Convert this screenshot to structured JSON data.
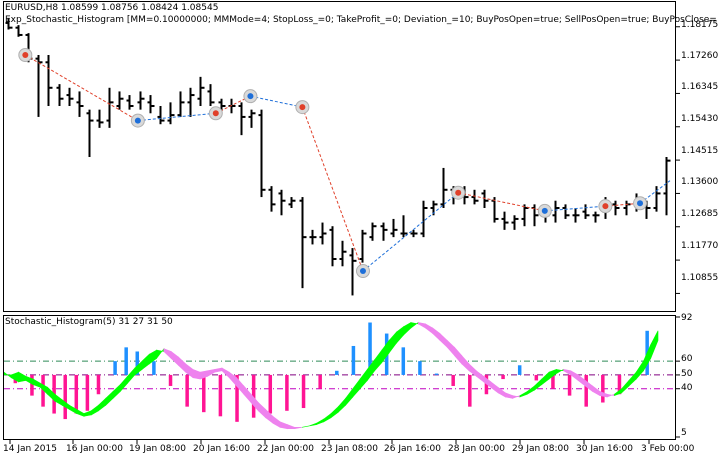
{
  "main_panel": {
    "symbol_header": "EURUSD,H8  1.08599 1.08756 1.08424 1.08545",
    "indicator_header": "Exp_Stochastic_Histogram [MM=0.10000000; MMMode=4; StopLoss_=0; TakeProfit_=0; Deviation_=10; BuyPosOpen=true; SellPosOpen=true; BuyPosClose=",
    "price_labels": [
      "1.18175",
      "1.17260",
      "1.16345",
      "1.15430",
      "1.14515",
      "1.13600",
      "1.12685",
      "1.11770",
      "1.10855"
    ]
  },
  "sub_panel": {
    "title": "Stochastic_Histogram(5) 31 27 31 50",
    "scale_labels": [
      "92",
      "60",
      "50",
      "40",
      "5"
    ]
  },
  "time_axis": {
    "labels": [
      "14 Jan 2015",
      "16 Jan 00:00",
      "19 Jan 08:00",
      "20 Jan 16:00",
      "22 Jan 00:00",
      "23 Jan 08:00",
      "26 Jan 16:00",
      "28 Jan 00:00",
      "29 Jan 08:00",
      "30 Jan 16:00",
      "3 Feb 00:00"
    ]
  },
  "chart_data": [
    {
      "type": "ohlc",
      "symbol": "EURUSD",
      "timeframe": "H8",
      "ylim": [
        1.104,
        1.188
      ],
      "bars": [
        [
          1.1828,
          1.184,
          1.181,
          1.1815
        ],
        [
          1.1815,
          1.1822,
          1.179,
          1.1795
        ],
        [
          1.1795,
          1.18,
          1.172,
          1.173
        ],
        [
          1.173,
          1.174,
          1.157,
          1.172
        ],
        [
          1.172,
          1.174,
          1.16,
          1.165
        ],
        [
          1.165,
          1.166,
          1.16,
          1.162
        ],
        [
          1.163,
          1.165,
          1.16,
          1.162
        ],
        [
          1.161,
          1.164,
          1.157,
          1.16
        ],
        [
          1.158,
          1.159,
          1.146,
          1.156
        ],
        [
          1.156,
          1.159,
          1.154,
          1.1555
        ],
        [
          1.156,
          1.165,
          1.154,
          1.161
        ],
        [
          1.16,
          1.164,
          1.159,
          1.162
        ],
        [
          1.1615,
          1.163,
          1.159,
          1.16
        ],
        [
          1.161,
          1.164,
          1.159,
          1.162
        ],
        [
          1.161,
          1.163,
          1.158,
          1.16
        ],
        [
          1.157,
          1.16,
          1.155,
          1.156
        ],
        [
          1.156,
          1.161,
          1.155,
          1.1575
        ],
        [
          1.1575,
          1.164,
          1.157,
          1.161
        ],
        [
          1.161,
          1.165,
          1.157,
          1.163
        ],
        [
          1.162,
          1.168,
          1.16,
          1.165
        ],
        [
          1.164,
          1.166,
          1.16,
          1.161
        ],
        [
          1.161,
          1.162,
          1.158,
          1.16
        ],
        [
          1.16,
          1.162,
          1.158,
          1.16
        ],
        [
          1.16,
          1.161,
          1.152,
          1.157
        ],
        [
          1.157,
          1.159,
          1.154,
          1.158
        ],
        [
          1.1575,
          1.159,
          1.135,
          1.137
        ],
        [
          1.137,
          1.138,
          1.131,
          1.133
        ],
        [
          1.136,
          1.137,
          1.13,
          1.134
        ],
        [
          1.133,
          1.135,
          1.132,
          1.134
        ],
        [
          1.134,
          1.135,
          1.11,
          1.124
        ],
        [
          1.124,
          1.126,
          1.122,
          1.124
        ],
        [
          1.124,
          1.128,
          1.122,
          1.125
        ],
        [
          1.126,
          1.127,
          1.116,
          1.118
        ],
        [
          1.118,
          1.123,
          1.116,
          1.12
        ],
        [
          1.119,
          1.121,
          1.108,
          1.1175
        ],
        [
          1.118,
          1.126,
          1.117,
          1.125
        ],
        [
          1.124,
          1.128,
          1.123,
          1.127
        ],
        [
          1.127,
          1.128,
          1.123,
          1.126
        ],
        [
          1.125,
          1.129,
          1.124,
          1.126
        ],
        [
          1.125,
          1.13,
          1.124,
          1.125
        ],
        [
          1.125,
          1.126,
          1.124,
          1.125
        ],
        [
          1.125,
          1.134,
          1.124,
          1.132
        ],
        [
          1.132,
          1.134,
          1.13,
          1.133
        ],
        [
          1.133,
          1.143,
          1.132,
          1.137
        ],
        [
          1.137,
          1.138,
          1.133,
          1.136
        ],
        [
          1.136,
          1.138,
          1.133,
          1.135
        ],
        [
          1.135,
          1.137,
          1.133,
          1.134
        ],
        [
          1.136,
          1.137,
          1.132,
          1.134
        ],
        [
          1.134,
          1.135,
          1.128,
          1.129
        ],
        [
          1.129,
          1.131,
          1.126,
          1.128
        ],
        [
          1.128,
          1.13,
          1.126,
          1.129
        ],
        [
          1.129,
          1.133,
          1.127,
          1.132
        ],
        [
          1.132,
          1.133,
          1.127,
          1.13
        ],
        [
          1.13,
          1.132,
          1.128,
          1.13
        ],
        [
          1.13,
          1.134,
          1.128,
          1.132
        ],
        [
          1.132,
          1.133,
          1.129,
          1.13
        ],
        [
          1.13,
          1.132,
          1.128,
          1.13
        ],
        [
          1.131,
          1.133,
          1.129,
          1.13
        ],
        [
          1.13,
          1.131,
          1.128,
          1.13
        ],
        [
          1.131,
          1.135,
          1.129,
          1.133
        ],
        [
          1.133,
          1.134,
          1.13,
          1.132
        ],
        [
          1.132,
          1.134,
          1.13,
          1.133
        ],
        [
          1.133,
          1.136,
          1.131,
          1.133
        ],
        [
          1.133,
          1.134,
          1.129,
          1.132
        ],
        [
          1.132,
          1.138,
          1.131,
          1.136
        ],
        [
          1.136,
          1.146,
          1.13,
          1.145
        ]
      ],
      "signals": [
        {
          "bar": 2,
          "type": "sell",
          "price": 1.174
        },
        {
          "bar": 15,
          "type": "buy",
          "price": 1.156
        },
        {
          "bar": 24,
          "type": "sell",
          "price": 1.158
        },
        {
          "bar": 28,
          "type": "buy",
          "price": 1.1627
        },
        {
          "bar": 34,
          "type": "sell",
          "price": 1.1597
        },
        {
          "bar": 41,
          "type": "buy",
          "price": 1.1147
        },
        {
          "bar": 52,
          "type": "sell",
          "price": 1.1362
        },
        {
          "bar": 62,
          "type": "buy",
          "price": 1.1312
        },
        {
          "bar": 69,
          "type": "sell",
          "price": 1.1325
        },
        {
          "bar": 73,
          "type": "buy",
          "price": 1.1333
        }
      ]
    },
    {
      "type": "histogram",
      "title": "Stochastic_Histogram(5) 31 27 31 50",
      "ylim": [
        5,
        92
      ],
      "levels": [
        60,
        50,
        40
      ],
      "colors": {
        "up_cloud": "#00ff00",
        "down_cloud": "#ee82ee",
        "up_bar": "#1e90ff",
        "down_bar": "#ff1493",
        "level60": "#2e8b57",
        "level40": "#c000c0"
      },
      "cloud": [
        [
          50,
          52
        ],
        [
          50,
          48
        ],
        [
          52,
          45
        ],
        [
          49,
          46
        ],
        [
          47,
          43
        ],
        [
          44,
          41
        ],
        [
          41,
          36
        ],
        [
          36,
          31
        ],
        [
          32,
          28
        ],
        [
          28,
          25
        ],
        [
          25,
          22
        ],
        [
          22,
          20
        ],
        [
          24,
          21
        ],
        [
          28,
          24
        ],
        [
          33,
          28
        ],
        [
          38,
          33
        ],
        [
          43,
          38
        ],
        [
          49,
          44
        ],
        [
          55,
          50
        ],
        [
          60,
          54
        ],
        [
          65,
          58
        ],
        [
          68,
          62
        ],
        [
          67,
          69
        ],
        [
          62,
          67
        ],
        [
          57,
          63
        ],
        [
          52,
          58
        ],
        [
          48,
          54
        ],
        [
          47,
          52
        ],
        [
          49,
          53
        ],
        [
          52,
          54
        ],
        [
          53,
          55
        ],
        [
          48,
          52
        ],
        [
          42,
          48
        ],
        [
          36,
          42
        ],
        [
          30,
          36
        ],
        [
          24,
          30
        ],
        [
          19,
          25
        ],
        [
          15,
          20
        ],
        [
          12,
          16
        ],
        [
          11,
          14
        ],
        [
          11,
          12
        ],
        [
          12,
          12
        ],
        [
          13,
          13
        ],
        [
          15,
          14
        ],
        [
          18,
          16
        ],
        [
          22,
          19
        ],
        [
          27,
          23
        ],
        [
          33,
          28
        ],
        [
          40,
          34
        ],
        [
          47,
          40
        ],
        [
          54,
          46
        ],
        [
          61,
          53
        ],
        [
          68,
          59
        ],
        [
          75,
          66
        ],
        [
          81,
          73
        ],
        [
          85,
          79
        ],
        [
          88,
          84
        ],
        [
          87,
          88
        ],
        [
          84,
          87
        ],
        [
          80,
          84
        ],
        [
          75,
          80
        ],
        [
          70,
          75
        ],
        [
          64,
          70
        ],
        [
          58,
          64
        ],
        [
          53,
          58
        ],
        [
          49,
          53
        ],
        [
          45,
          49
        ],
        [
          41,
          45
        ],
        [
          37,
          41
        ],
        [
          34,
          37
        ],
        [
          33,
          35
        ],
        [
          35,
          34
        ],
        [
          38,
          36
        ],
        [
          42,
          39
        ],
        [
          47,
          43
        ],
        [
          52,
          47
        ],
        [
          54,
          51
        ],
        [
          53,
          54
        ],
        [
          50,
          53
        ],
        [
          46,
          50
        ],
        [
          42,
          46
        ],
        [
          38,
          42
        ],
        [
          35,
          38
        ],
        [
          34,
          36
        ],
        [
          36,
          35
        ],
        [
          40,
          37
        ],
        [
          46,
          42
        ],
        [
          52,
          47
        ],
        [
          60,
          53
        ],
        [
          72,
          62
        ],
        [
          82,
          75
        ]
      ],
      "bars": [
        {
          "i": 2,
          "v": 44
        },
        {
          "i": 5,
          "v": 35
        },
        {
          "i": 7,
          "v": 27
        },
        {
          "i": 9,
          "v": 22
        },
        {
          "i": 11,
          "v": 18
        },
        {
          "i": 13,
          "v": 22
        },
        {
          "i": 15,
          "v": 24
        },
        {
          "i": 17,
          "v": 36
        },
        {
          "i": 20,
          "v": 60
        },
        {
          "i": 22,
          "v": 70
        },
        {
          "i": 24,
          "v": 67
        },
        {
          "i": 27,
          "v": 60
        },
        {
          "i": 30,
          "v": 42
        },
        {
          "i": 33,
          "v": 27
        },
        {
          "i": 36,
          "v": 23
        },
        {
          "i": 39,
          "v": 20
        },
        {
          "i": 42,
          "v": 16
        },
        {
          "i": 45,
          "v": 19
        },
        {
          "i": 48,
          "v": 22
        },
        {
          "i": 51,
          "v": 24
        },
        {
          "i": 54,
          "v": 26
        },
        {
          "i": 57,
          "v": 40
        },
        {
          "i": 60,
          "v": 53
        },
        {
          "i": 63,
          "v": 71
        },
        {
          "i": 66,
          "v": 88
        },
        {
          "i": 69,
          "v": 80
        },
        {
          "i": 72,
          "v": 70
        },
        {
          "i": 75,
          "v": 60
        },
        {
          "i": 78,
          "v": 51
        },
        {
          "i": 81,
          "v": 42
        },
        {
          "i": 84,
          "v": 27
        },
        {
          "i": 87,
          "v": 36
        },
        {
          "i": 90,
          "v": 47
        },
        {
          "i": 93,
          "v": 57
        },
        {
          "i": 96,
          "v": 46
        },
        {
          "i": 99,
          "v": 40
        },
        {
          "i": 102,
          "v": 35
        },
        {
          "i": 105,
          "v": 27
        },
        {
          "i": 108,
          "v": 30
        },
        {
          "i": 111,
          "v": 36
        },
        {
          "i": 114,
          "v": 50
        },
        {
          "i": 116,
          "v": 82
        }
      ]
    }
  ]
}
